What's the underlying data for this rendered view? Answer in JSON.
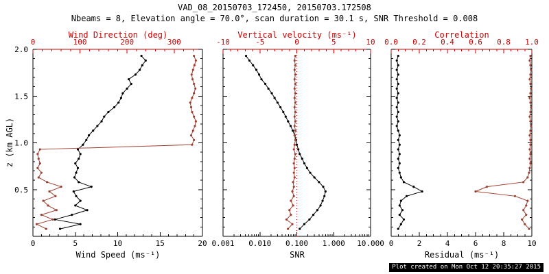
{
  "title": "VAD_08_20150703_172450, 20150703.172508",
  "subtitle": "Nbeams = 8, Elevation angle = 70.0°, scan duration = 30.1 s, SNR Threshold = 0.008",
  "footer_note": "Plot created on Mon Oct 12 20:35:27 2015",
  "colors": {
    "black": "#000000",
    "axis_red": "#cc0000",
    "series_red": "#9e4030",
    "footer_bg": "#000000",
    "footer_text": "#ffffff"
  },
  "chart_data": [
    {
      "type": "line",
      "name": "wind",
      "z": [
        0.08,
        0.13,
        0.18,
        0.23,
        0.28,
        0.33,
        0.38,
        0.43,
        0.48,
        0.53,
        0.58,
        0.63,
        0.68,
        0.73,
        0.78,
        0.83,
        0.88,
        0.93,
        0.98,
        1.03,
        1.08,
        1.13,
        1.18,
        1.23,
        1.28,
        1.33,
        1.38,
        1.43,
        1.48,
        1.53,
        1.58,
        1.63,
        1.68,
        1.73,
        1.78,
        1.83,
        1.88,
        1.93
      ],
      "y": {
        "label": "z (km AGL)",
        "min": 0,
        "max": 2,
        "ticks": [
          0.5,
          1.0,
          1.5,
          2.0
        ],
        "tick_labels": [
          "0.5",
          "1.0",
          "1.5",
          "2.0"
        ],
        "minor_div": 5
      },
      "x_bottom": {
        "label": "Wind Speed (ms⁻¹)",
        "min": 0,
        "max": 20,
        "ticks": [
          0,
          5,
          10,
          15,
          20
        ],
        "tick_labels": [
          "0",
          "5",
          "10",
          "15",
          "20"
        ],
        "minor_div": 5
      },
      "x_top": {
        "label": "Wind Direction (deg)",
        "min": 0,
        "max": 360,
        "ticks": [
          0,
          100,
          200,
          300
        ],
        "tick_labels": [
          "0",
          "100",
          "200",
          "300"
        ],
        "minor_div": 5
      },
      "series": [
        {
          "name": "wind_speed",
          "axis": "bottom",
          "color": "#000000",
          "values": [
            3.2,
            5.6,
            2.6,
            4.6,
            6.4,
            5.0,
            5.6,
            5.1,
            4.8,
            6.9,
            5.4,
            4.9,
            5.1,
            5.3,
            5.0,
            5.4,
            5.6,
            5.3,
            5.9,
            6.3,
            6.6,
            7.1,
            7.6,
            8.1,
            8.4,
            8.9,
            9.6,
            10.1,
            10.4,
            10.6,
            11.1,
            11.6,
            11.3,
            12.1,
            12.6,
            12.9,
            13.3,
            12.8
          ]
        },
        {
          "name": "wind_direction",
          "axis": "top",
          "color": "#9e4030",
          "values": [
            28,
            8,
            42,
            18,
            50,
            32,
            22,
            48,
            35,
            60,
            30,
            12,
            18,
            10,
            15,
            12,
            10,
            15,
            338,
            342,
            336,
            340,
            344,
            346,
            342,
            338,
            336,
            334,
            338,
            342,
            345,
            342,
            339,
            337,
            340,
            343,
            346,
            342
          ]
        }
      ]
    },
    {
      "type": "line",
      "name": "snr-velocity",
      "z": [
        0.08,
        0.13,
        0.18,
        0.23,
        0.28,
        0.33,
        0.38,
        0.43,
        0.48,
        0.53,
        0.58,
        0.63,
        0.68,
        0.73,
        0.78,
        0.83,
        0.88,
        0.93,
        0.98,
        1.03,
        1.08,
        1.13,
        1.18,
        1.23,
        1.28,
        1.33,
        1.38,
        1.43,
        1.48,
        1.53,
        1.58,
        1.63,
        1.68,
        1.73,
        1.78,
        1.83,
        1.88,
        1.93
      ],
      "y": {
        "label": "z (km AGL)",
        "min": 0,
        "max": 2,
        "ticks": [
          0.5,
          1.0,
          1.5,
          2.0
        ],
        "tick_labels": [
          "0.5",
          "1.0",
          "1.5",
          "2.0"
        ],
        "minor_div": 5
      },
      "x_bottom": {
        "label": "SNR",
        "min": 0.001,
        "max": 10,
        "log": true,
        "ticks": [
          0.001,
          0.01,
          0.1,
          1,
          10
        ],
        "tick_labels": [
          "0.001",
          "0.010",
          "0.100",
          "1.000",
          "10.000"
        ]
      },
      "x_top": {
        "label": "Vertical velocity (ms⁻¹)",
        "min": -10,
        "max": 10,
        "ticks": [
          -10,
          -5,
          0,
          5,
          10
        ],
        "tick_labels": [
          "-10",
          "-5",
          "0",
          "5",
          "10"
        ],
        "minor_div": 5
      },
      "ref_line_top_value": 0,
      "series": [
        {
          "name": "snr",
          "axis": "bottom",
          "color": "#000000",
          "values": [
            0.12,
            0.16,
            0.22,
            0.28,
            0.36,
            0.44,
            0.5,
            0.56,
            0.6,
            0.52,
            0.4,
            0.3,
            0.23,
            0.19,
            0.16,
            0.14,
            0.12,
            0.11,
            0.1,
            0.096,
            0.088,
            0.078,
            0.068,
            0.058,
            0.05,
            0.043,
            0.036,
            0.03,
            0.025,
            0.021,
            0.017,
            0.014,
            0.011,
            0.0095,
            0.008,
            0.0065,
            0.0052,
            0.0042
          ]
        },
        {
          "name": "vertical_velocity",
          "axis": "top",
          "color": "#9e4030",
          "values": [
            -1.2,
            -0.6,
            -1.4,
            -0.8,
            -1.0,
            -0.5,
            -0.8,
            -0.4,
            -0.6,
            -0.4,
            -0.5,
            -0.3,
            -0.4,
            -0.3,
            -0.4,
            -0.3,
            -0.2,
            -0.4,
            -0.3,
            -0.2,
            -0.3,
            -0.2,
            -0.3,
            -0.2,
            -0.3,
            -0.2,
            -0.3,
            -0.2,
            -0.3,
            -0.2,
            -0.3,
            -0.2,
            -0.3,
            -0.2,
            -0.3,
            -0.2,
            -0.3,
            -0.2
          ]
        }
      ]
    },
    {
      "type": "line",
      "name": "residual-correlation",
      "z": [
        0.08,
        0.13,
        0.18,
        0.23,
        0.28,
        0.33,
        0.38,
        0.43,
        0.48,
        0.53,
        0.58,
        0.63,
        0.68,
        0.73,
        0.78,
        0.83,
        0.88,
        0.93,
        0.98,
        1.03,
        1.08,
        1.13,
        1.18,
        1.23,
        1.28,
        1.33,
        1.38,
        1.43,
        1.48,
        1.53,
        1.58,
        1.63,
        1.68,
        1.73,
        1.78,
        1.83,
        1.88,
        1.93
      ],
      "y": {
        "label": "z (km AGL)",
        "min": 0,
        "max": 2,
        "ticks": [
          0.5,
          1.0,
          1.5,
          2.0
        ],
        "tick_labels": [
          "0.5",
          "1.0",
          "1.5",
          "2.0"
        ],
        "minor_div": 5
      },
      "x_bottom": {
        "label": "Residual (ms⁻¹)",
        "min": 0,
        "max": 10,
        "ticks": [
          0,
          2,
          4,
          6,
          8,
          10
        ],
        "tick_labels": [
          "0",
          "2",
          "4",
          "6",
          "8",
          "10"
        ],
        "minor_div": 4
      },
      "x_top": {
        "label": "Correlation",
        "min": 0,
        "max": 1,
        "ticks": [
          0.0,
          0.2,
          0.4,
          0.6,
          0.8,
          1.0
        ],
        "tick_labels": [
          "0.0",
          "0.2",
          "0.4",
          "0.6",
          "0.8",
          "1.0"
        ],
        "minor_div": 4
      },
      "series": [
        {
          "name": "residual",
          "axis": "bottom",
          "color": "#000000",
          "values": [
            0.5,
            0.7,
            0.9,
            0.6,
            0.8,
            0.6,
            0.7,
            1.1,
            2.2,
            1.6,
            0.9,
            0.7,
            0.6,
            0.5,
            0.6,
            0.5,
            0.6,
            0.5,
            0.6,
            0.5,
            0.6,
            0.5,
            0.4,
            0.5,
            0.4,
            0.5,
            0.4,
            0.5,
            0.4,
            0.5,
            0.4,
            0.5,
            0.4,
            0.5,
            0.4,
            0.5,
            0.4,
            0.5
          ]
        },
        {
          "name": "correlation",
          "axis": "top",
          "color": "#9e4030",
          "values": [
            0.98,
            0.95,
            0.93,
            0.96,
            0.94,
            0.96,
            0.97,
            0.88,
            0.6,
            0.68,
            0.94,
            0.97,
            0.98,
            0.985,
            0.99,
            0.985,
            0.99,
            0.985,
            0.99,
            0.99,
            0.985,
            0.99,
            0.995,
            0.99,
            0.985,
            0.99,
            0.995,
            0.99,
            0.985,
            0.99,
            0.995,
            0.99,
            0.985,
            0.99,
            0.995,
            0.99,
            0.985,
            0.99
          ]
        }
      ]
    }
  ]
}
